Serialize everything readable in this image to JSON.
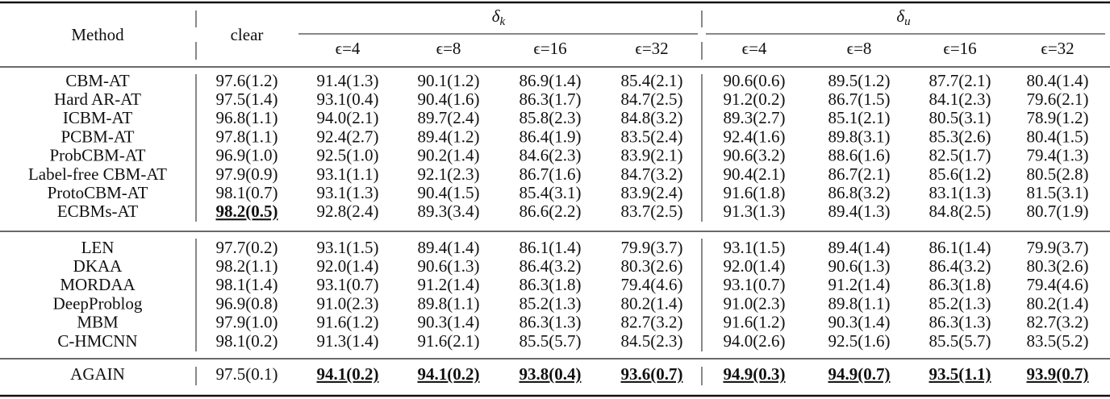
{
  "table": {
    "header": {
      "method": "Method",
      "clear": "clear",
      "groups": [
        {
          "symbol": "δ",
          "subscript": "k",
          "columns": [
            "ϵ=4",
            "ϵ=8",
            "ϵ=16",
            "ϵ=32"
          ]
        },
        {
          "symbol": "δ",
          "subscript": "u",
          "columns": [
            "ϵ=4",
            "ϵ=8",
            "ϵ=16",
            "ϵ=32"
          ]
        }
      ]
    },
    "sections": [
      {
        "rows": [
          {
            "method": "CBM-AT",
            "values": [
              "97.6(1.2)",
              "91.4(1.3)",
              "90.1(1.2)",
              "86.9(1.4)",
              "85.4(2.1)",
              "90.6(0.6)",
              "89.5(1.2)",
              "87.7(2.1)",
              "80.4(1.4)"
            ]
          },
          {
            "method": "Hard AR-AT",
            "values": [
              "97.5(1.4)",
              "93.1(0.4)",
              "90.4(1.6)",
              "86.3(1.7)",
              "84.7(2.5)",
              "91.2(0.2)",
              "86.7(1.5)",
              "84.1(2.3)",
              "79.6(2.1)"
            ]
          },
          {
            "method": "ICBM-AT",
            "values": [
              "96.8(1.1)",
              "94.0(2.1)",
              "89.7(2.4)",
              "85.8(2.3)",
              "84.8(3.2)",
              "89.3(2.7)",
              "85.1(2.1)",
              "80.5(3.1)",
              "78.9(1.2)"
            ]
          },
          {
            "method": "PCBM-AT",
            "values": [
              "97.8(1.1)",
              "92.4(2.7)",
              "89.4(1.2)",
              "86.4(1.9)",
              "83.5(2.4)",
              "92.4(1.6)",
              "89.8(3.1)",
              "85.3(2.6)",
              "80.4(1.5)"
            ]
          },
          {
            "method": "ProbCBM-AT",
            "values": [
              "96.9(1.0)",
              "92.5(1.0)",
              "90.2(1.4)",
              "84.6(2.3)",
              "83.9(2.1)",
              "90.6(3.2)",
              "88.6(1.6)",
              "82.5(1.7)",
              "79.4(1.3)"
            ]
          },
          {
            "method": "Label-free CBM-AT",
            "values": [
              "97.9(0.9)",
              "93.1(1.1)",
              "92.1(2.3)",
              "86.7(1.6)",
              "84.7(3.2)",
              "90.4(2.1)",
              "86.7(2.1)",
              "85.6(1.2)",
              "80.5(2.8)"
            ]
          },
          {
            "method": "ProtoCBM-AT",
            "values": [
              "98.1(0.7)",
              "93.1(1.3)",
              "90.4(1.5)",
              "85.4(3.1)",
              "83.9(2.4)",
              "91.6(1.8)",
              "86.8(3.2)",
              "83.1(1.3)",
              "81.5(3.1)"
            ]
          },
          {
            "method": "ECBMs-AT",
            "values": [
              "98.2(0.5)",
              "92.8(2.4)",
              "89.3(3.4)",
              "86.6(2.2)",
              "83.7(2.5)",
              "91.3(1.3)",
              "89.4(1.3)",
              "84.8(2.5)",
              "80.7(1.9)"
            ]
          }
        ]
      },
      {
        "rows": [
          {
            "method": "LEN",
            "values": [
              "97.7(0.2)",
              "93.1(1.5)",
              "89.4(1.4)",
              "86.1(1.4)",
              "79.9(3.7)",
              "93.1(1.5)",
              "89.4(1.4)",
              "86.1(1.4)",
              "79.9(3.7)"
            ]
          },
          {
            "method": "DKAA",
            "values": [
              "98.2(1.1)",
              "92.0(1.4)",
              "90.6(1.3)",
              "86.4(3.2)",
              "80.3(2.6)",
              "92.0(1.4)",
              "90.6(1.3)",
              "86.4(3.2)",
              "80.3(2.6)"
            ]
          },
          {
            "method": "MORDAA",
            "values": [
              "98.1(1.4)",
              "93.1(0.7)",
              "91.2(1.4)",
              "86.3(1.8)",
              "79.4(4.6)",
              "93.1(0.7)",
              "91.2(1.4)",
              "86.3(1.8)",
              "79.4(4.6)"
            ]
          },
          {
            "method": "DeepProblog",
            "values": [
              "96.9(0.8)",
              "91.0(2.3)",
              "89.8(1.1)",
              "85.2(1.3)",
              "80.2(1.4)",
              "91.0(2.3)",
              "89.8(1.1)",
              "85.2(1.3)",
              "80.2(1.4)"
            ]
          },
          {
            "method": "MBM",
            "values": [
              "97.9(1.0)",
              "91.6(1.2)",
              "90.3(1.4)",
              "86.3(1.3)",
              "82.7(3.2)",
              "91.6(1.2)",
              "90.3(1.4)",
              "86.3(1.3)",
              "82.7(3.2)"
            ]
          },
          {
            "method": "C-HMCNN",
            "values": [
              "98.1(0.2)",
              "91.3(1.4)",
              "91.6(2.1)",
              "85.5(5.7)",
              "84.5(2.3)",
              "94.0(2.6)",
              "92.5(1.6)",
              "85.5(5.7)",
              "83.5(5.2)"
            ]
          }
        ]
      },
      {
        "rows": [
          {
            "method": "AGAIN",
            "values": [
              "97.5(0.1)",
              "94.1(0.2)",
              "94.1(0.2)",
              "93.8(0.4)",
              "93.6(0.7)",
              "94.9(0.3)",
              "94.9(0.7)",
              "93.5(1.1)",
              "93.9(0.7)"
            ]
          }
        ]
      }
    ]
  }
}
